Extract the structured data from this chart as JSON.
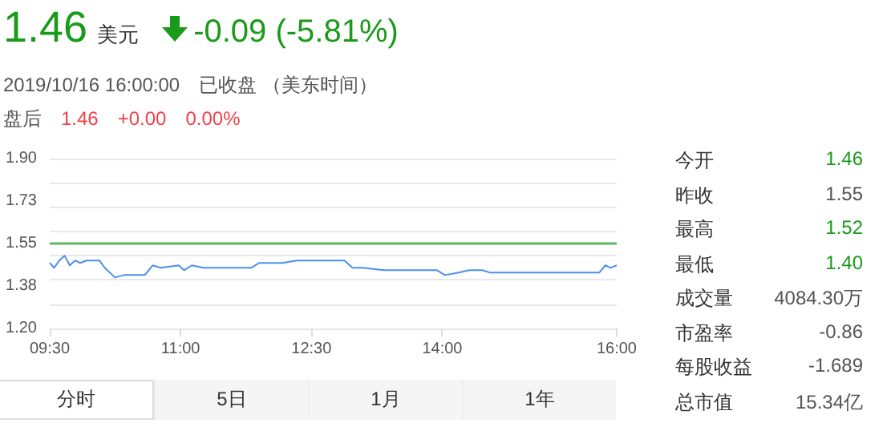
{
  "chart_data": {
    "type": "line",
    "x": [
      9.5,
      9.55,
      9.61,
      9.67,
      9.73,
      9.79,
      9.85,
      9.92,
      10.07,
      10.13,
      10.22,
      10.25,
      10.35,
      10.47,
      10.59,
      10.68,
      10.77,
      10.98,
      11.04,
      11.13,
      11.26,
      11.81,
      11.9,
      12.17,
      12.33,
      12.6,
      12.88,
      12.97,
      13.09,
      13.33,
      13.7,
      13.94,
      14.03,
      14.19,
      14.31,
      14.46,
      14.55,
      15.04,
      15.8,
      15.87,
      15.93,
      16.0
    ],
    "series": [
      {
        "color": "#4a8ef0",
        "values": [
          1.47,
          1.45,
          1.48,
          1.5,
          1.46,
          1.48,
          1.47,
          1.48,
          1.48,
          1.45,
          1.42,
          1.41,
          1.42,
          1.42,
          1.42,
          1.46,
          1.45,
          1.46,
          1.44,
          1.46,
          1.45,
          1.45,
          1.47,
          1.47,
          1.48,
          1.48,
          1.48,
          1.45,
          1.45,
          1.44,
          1.44,
          1.44,
          1.42,
          1.43,
          1.44,
          1.44,
          1.43,
          1.43,
          1.43,
          1.46,
          1.45,
          1.46
        ]
      }
    ],
    "xlim": [
      9.5,
      16
    ],
    "xticks": [
      {
        "value": 9.5,
        "label": "09:30"
      },
      {
        "value": 11,
        "label": "11:00"
      },
      {
        "value": 12.5,
        "label": "12:30"
      },
      {
        "value": 14,
        "label": "14:00"
      },
      {
        "value": 16,
        "label": "16:00"
      }
    ],
    "ylim": [
      1.2,
      1.9
    ],
    "yticks": [
      {
        "value": 1.2,
        "label": "1.20"
      },
      {
        "value": 1.375,
        "label": "1.38"
      },
      {
        "value": 1.55,
        "label": "1.55"
      },
      {
        "value": 1.725,
        "label": "1.73"
      },
      {
        "value": 1.9,
        "label": "1.90"
      }
    ],
    "ref_lines": [
      {
        "axis": "y",
        "value": 1.55,
        "color": "#5cb85c"
      }
    ],
    "grid": "y",
    "marker": "none",
    "line_style": "solid",
    "annotations": [
      "1.46",
      "美元",
      "-0.09 (-5.81%)",
      "2019/10/16 16:00:00",
      "已收盘 （美东时间）",
      "盘后",
      "1.46",
      "+0.00",
      "0.00%",
      "今开",
      "1.46",
      "昨收",
      "1.55",
      "最高",
      "1.52",
      "最低",
      "1.40",
      "成交量",
      "4084.30万",
      "市盈率",
      "-0.86",
      "每股收益",
      "-1.689",
      "总市值",
      "15.34亿",
      "分时",
      "5日",
      "1月",
      "1年"
    ]
  }
}
